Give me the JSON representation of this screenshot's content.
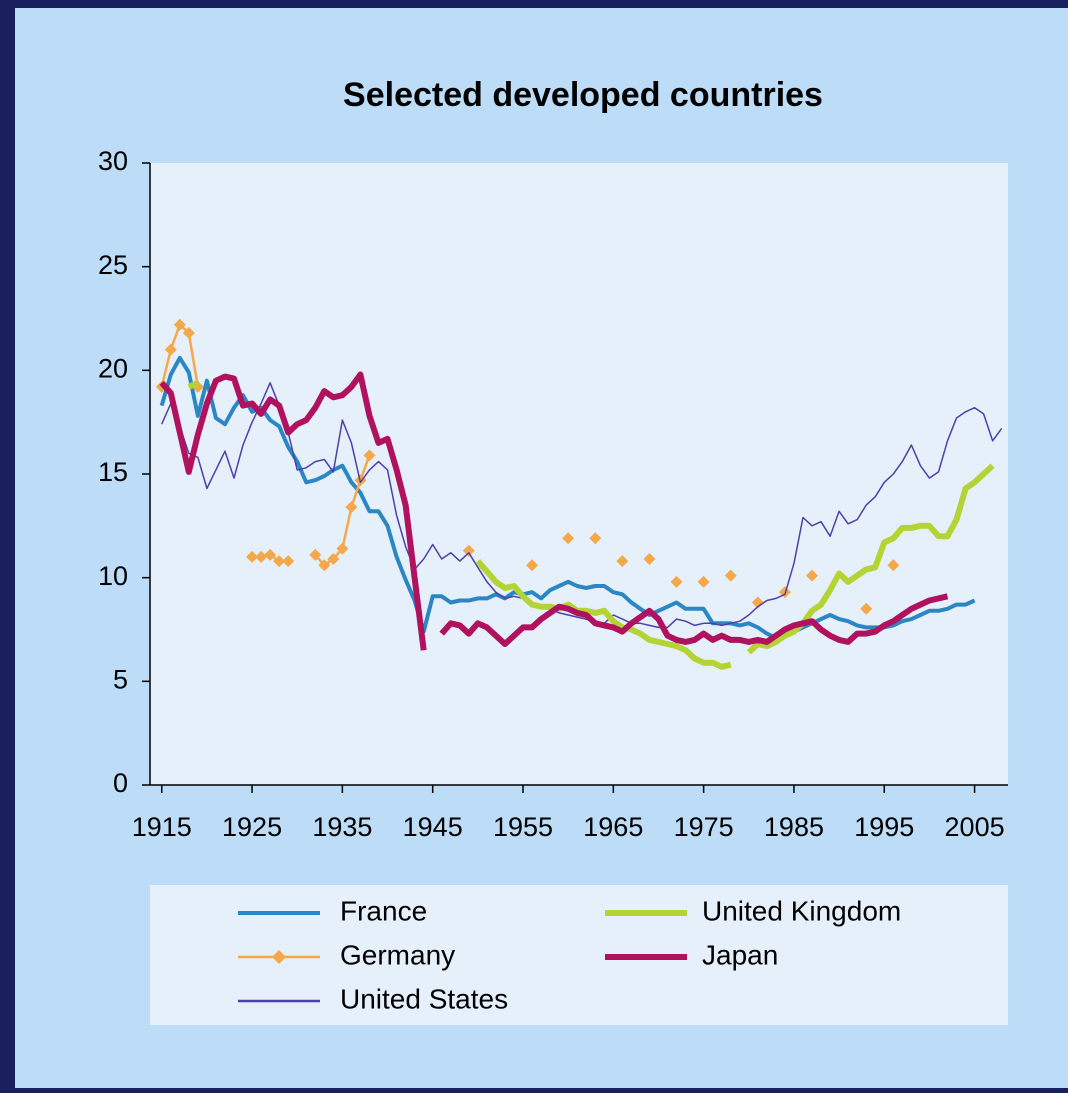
{
  "chart_data": {
    "type": "line",
    "title": "Selected developed countries",
    "xlim": [
      1913.7,
      2008.7
    ],
    "xticks": [
      1915,
      1925,
      1935,
      1945,
      1955,
      1965,
      1975,
      1985,
      1995,
      2005
    ],
    "ylim": [
      0,
      30
    ],
    "yticks": [
      0,
      5,
      10,
      15,
      20,
      25,
      30
    ],
    "series": [
      {
        "name": "France",
        "color": "#2a87c4",
        "x": [
          1915,
          1916,
          1917,
          1918,
          1919,
          1920,
          1921,
          1922,
          1923,
          1924,
          1925,
          1926,
          1927,
          1928,
          1929,
          1930,
          1931,
          1932,
          1933,
          1934,
          1935,
          1936,
          1937,
          1938,
          1939,
          1940,
          1941,
          1942,
          1943,
          1944,
          1945,
          1946,
          1947,
          1948,
          1949,
          1950,
          1951,
          1952,
          1953,
          1954,
          1955,
          1956,
          1957,
          1958,
          1959,
          1960,
          1961,
          1962,
          1963,
          1964,
          1965,
          1966,
          1967,
          1968,
          1969,
          1970,
          1971,
          1972,
          1973,
          1974,
          1975,
          1976,
          1977,
          1978,
          1979,
          1980,
          1981,
          1982,
          1983,
          1984,
          1985,
          1986,
          1987,
          1988,
          1989,
          1990,
          1991,
          1992,
          1993,
          1994,
          1995,
          1996,
          1997,
          1998,
          1999,
          2000,
          2001,
          2002,
          2003,
          2004,
          2005
        ],
        "values": [
          18.3,
          19.8,
          20.6,
          19.9,
          17.8,
          19.5,
          17.7,
          17.4,
          18.2,
          18.8,
          18.0,
          18.2,
          17.6,
          17.3,
          16.3,
          15.6,
          14.6,
          14.7,
          14.9,
          15.2,
          15.4,
          14.6,
          14.1,
          13.2,
          13.2,
          12.5,
          11.0,
          9.9,
          8.9,
          7.4,
          9.1,
          9.1,
          8.8,
          8.9,
          8.9,
          9.0,
          9.0,
          9.2,
          9.0,
          9.3,
          9.2,
          9.3,
          9.0,
          9.4,
          9.6,
          9.8,
          9.6,
          9.5,
          9.6,
          9.6,
          9.3,
          9.2,
          8.8,
          8.5,
          8.2,
          8.4,
          8.6,
          8.8,
          8.5,
          8.5,
          8.5,
          7.8,
          7.8,
          7.8,
          7.7,
          7.8,
          7.6,
          7.3,
          7.1,
          7.2,
          7.4,
          7.6,
          7.8,
          8.0,
          8.2,
          8.0,
          7.9,
          7.7,
          7.6,
          7.6,
          7.6,
          7.7,
          7.9,
          8.0,
          8.2,
          8.4,
          8.4,
          8.5,
          8.7,
          8.7,
          8.9
        ]
      },
      {
        "name": "Germany",
        "color": "#f5a84a",
        "marker": "diamond",
        "x": [
          1915,
          1916,
          1917,
          1918,
          1919,
          1920,
          1925,
          1926,
          1927,
          1928,
          1929,
          1930,
          1932,
          1933,
          1934,
          1935,
          1936,
          1937,
          1938,
          1939,
          1949,
          1950,
          1956,
          1957,
          1960,
          1961,
          1963,
          1964,
          1966,
          1967,
          1969,
          1970,
          1972,
          1973,
          1975,
          1976,
          1978,
          1979,
          1981,
          1982,
          1984,
          1985,
          1987,
          1988,
          1993,
          1994,
          1996
        ],
        "values": [
          19.2,
          21.0,
          22.2,
          21.8,
          19.2,
          null,
          11.0,
          11.0,
          11.1,
          10.8,
          10.8,
          null,
          11.1,
          10.6,
          10.9,
          11.4,
          13.4,
          14.7,
          15.9,
          null,
          11.3,
          null,
          10.6,
          null,
          11.9,
          null,
          11.9,
          null,
          10.8,
          null,
          10.9,
          null,
          9.8,
          null,
          9.8,
          null,
          10.1,
          null,
          8.8,
          null,
          9.3,
          null,
          10.1,
          null,
          8.5,
          null,
          10.6
        ]
      },
      {
        "name": "United States",
        "color": "#4f3fa8",
        "x": [
          1915,
          1916,
          1917,
          1918,
          1919,
          1920,
          1921,
          1922,
          1923,
          1924,
          1925,
          1926,
          1927,
          1928,
          1929,
          1930,
          1931,
          1932,
          1933,
          1934,
          1935,
          1936,
          1937,
          1938,
          1939,
          1940,
          1941,
          1942,
          1943,
          1944,
          1945,
          1946,
          1947,
          1948,
          1949,
          1950,
          1951,
          1952,
          1953,
          1954,
          1955,
          1956,
          1957,
          1958,
          1959,
          1960,
          1961,
          1962,
          1963,
          1964,
          1965,
          1966,
          1967,
          1968,
          1969,
          1970,
          1971,
          1972,
          1973,
          1974,
          1975,
          1976,
          1977,
          1978,
          1979,
          1980,
          1981,
          1982,
          1983,
          1984,
          1985,
          1986,
          1987,
          1988,
          1989,
          1990,
          1991,
          1992,
          1993,
          1994,
          1995,
          1996,
          1997,
          1998,
          1999,
          2000,
          2001,
          2002,
          2003,
          2004,
          2005,
          2006,
          2007,
          2008
        ],
        "values": [
          17.4,
          18.4,
          17.3,
          16.0,
          15.8,
          14.3,
          15.2,
          16.1,
          14.8,
          16.4,
          17.5,
          18.4,
          19.4,
          18.3,
          17.0,
          15.2,
          15.3,
          15.6,
          15.7,
          15.1,
          17.6,
          16.5,
          14.6,
          15.2,
          15.6,
          15.2,
          13.0,
          11.5,
          10.4,
          10.9,
          11.6,
          10.9,
          11.2,
          10.8,
          11.2,
          10.5,
          9.8,
          9.3,
          9.0,
          9.1,
          9.0,
          8.6,
          8.6,
          8.5,
          8.3,
          8.2,
          8.1,
          8.0,
          7.9,
          7.8,
          8.2,
          8.0,
          7.8,
          7.8,
          7.7,
          7.6,
          7.6,
          8.0,
          7.9,
          7.7,
          7.8,
          7.8,
          7.7,
          7.8,
          7.9,
          8.2,
          8.6,
          8.9,
          9.0,
          9.2,
          10.7,
          12.9,
          12.5,
          12.7,
          12.0,
          13.2,
          12.6,
          12.8,
          13.5,
          13.9,
          14.6,
          15.0,
          15.6,
          16.4,
          15.4,
          14.8,
          15.1,
          16.6,
          17.7,
          18.0,
          18.2,
          17.9,
          16.6,
          17.2
        ]
      },
      {
        "name": "United Kingdom",
        "color": "#b5d334",
        "x": [
          1918,
          1919,
          1920,
          1950,
          1951,
          1952,
          1953,
          1954,
          1955,
          1956,
          1957,
          1958,
          1959,
          1960,
          1961,
          1962,
          1963,
          1964,
          1965,
          1966,
          1967,
          1968,
          1969,
          1970,
          1971,
          1972,
          1973,
          1974,
          1975,
          1976,
          1977,
          1978,
          1979,
          1980,
          1981,
          1982,
          1983,
          1984,
          1985,
          1986,
          1987,
          1988,
          1989,
          1990,
          1991,
          1992,
          1993,
          1994,
          1995,
          1996,
          1997,
          1998,
          1999,
          2000,
          2001,
          2002,
          2003,
          2004,
          2005,
          2006,
          2007
        ],
        "values": [
          19.2,
          19.4,
          null,
          10.8,
          10.3,
          9.8,
          9.5,
          9.6,
          9.1,
          8.7,
          8.6,
          8.6,
          8.5,
          8.7,
          8.4,
          8.4,
          8.3,
          8.4,
          7.9,
          7.6,
          7.5,
          7.3,
          7.0,
          6.9,
          6.8,
          6.7,
          6.5,
          6.1,
          5.9,
          5.9,
          5.7,
          5.8,
          null,
          6.4,
          6.8,
          6.7,
          6.9,
          7.2,
          7.4,
          7.8,
          8.4,
          8.7,
          9.4,
          10.2,
          9.8,
          10.1,
          10.4,
          10.5,
          11.7,
          11.9,
          12.4,
          12.4,
          12.5,
          12.5,
          12.0,
          12.0,
          12.8,
          14.3,
          14.6,
          15.0,
          15.4
        ]
      },
      {
        "name": "Japan",
        "color": "#b0125f",
        "x": [
          1915,
          1916,
          1917,
          1918,
          1919,
          1920,
          1921,
          1922,
          1923,
          1924,
          1925,
          1926,
          1927,
          1928,
          1929,
          1930,
          1931,
          1932,
          1933,
          1934,
          1935,
          1936,
          1937,
          1938,
          1939,
          1940,
          1941,
          1942,
          1943,
          1944,
          1945,
          1946,
          1947,
          1948,
          1949,
          1950,
          1951,
          1952,
          1953,
          1954,
          1955,
          1956,
          1957,
          1958,
          1959,
          1960,
          1961,
          1962,
          1963,
          1964,
          1965,
          1966,
          1967,
          1968,
          1969,
          1970,
          1971,
          1972,
          1973,
          1974,
          1975,
          1976,
          1977,
          1978,
          1979,
          1980,
          1981,
          1982,
          1983,
          1984,
          1985,
          1986,
          1987,
          1988,
          1989,
          1990,
          1991,
          1992,
          1993,
          1994,
          1995,
          1996,
          1997,
          1998,
          1999,
          2000,
          2001,
          2002
        ],
        "values": [
          19.4,
          18.9,
          17.0,
          15.1,
          16.9,
          18.4,
          19.5,
          19.7,
          19.6,
          18.3,
          18.4,
          17.9,
          18.6,
          18.3,
          17.0,
          17.4,
          17.6,
          18.2,
          19.0,
          18.7,
          18.8,
          19.2,
          19.8,
          17.8,
          16.5,
          16.7,
          15.2,
          13.5,
          10.0,
          6.5,
          null,
          7.3,
          7.8,
          7.7,
          7.3,
          7.8,
          7.6,
          7.2,
          6.8,
          7.2,
          7.6,
          7.6,
          8.0,
          8.3,
          8.6,
          8.5,
          8.3,
          8.2,
          7.8,
          7.7,
          7.6,
          7.4,
          7.8,
          8.1,
          8.4,
          8.0,
          7.2,
          7.0,
          6.9,
          7.0,
          7.3,
          7.0,
          7.2,
          7.0,
          7.0,
          6.9,
          7.0,
          6.9,
          7.2,
          7.5,
          7.7,
          7.8,
          7.9,
          7.5,
          7.2,
          7.0,
          6.9,
          7.3,
          7.3,
          7.4,
          7.7,
          7.9,
          8.2,
          8.5,
          8.7,
          8.9,
          9.0,
          9.1
        ]
      }
    ]
  }
}
